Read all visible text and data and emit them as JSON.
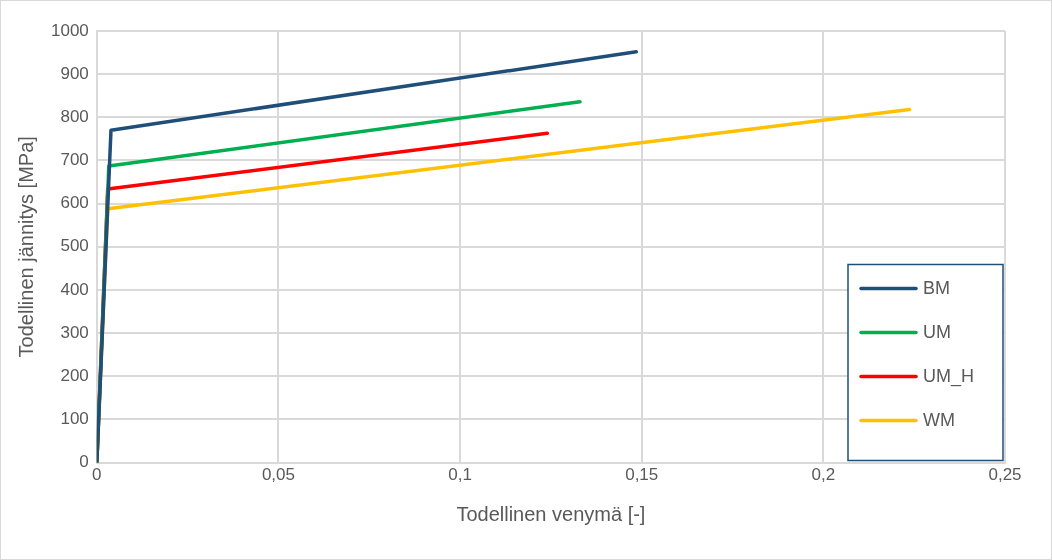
{
  "chart_data": {
    "type": "line",
    "xlabel": "Todellinen venymä [-]",
    "ylabel": "Todellinen jännitys [MPa]",
    "series": [
      {
        "name": "BM",
        "color": "#1f4e79",
        "x": [
          0,
          0.0039,
          0.1485
        ],
        "values": [
          0,
          770,
          952
        ]
      },
      {
        "name": "UM",
        "color": "#00b050",
        "x": [
          0,
          0.0033,
          0.133
        ],
        "values": [
          0,
          687,
          836
        ]
      },
      {
        "name": "UM_H",
        "color": "#ff0000",
        "x": [
          0,
          0.003,
          0.124
        ],
        "values": [
          0,
          634,
          763
        ]
      },
      {
        "name": "WM",
        "color": "#ffc000",
        "x": [
          0,
          0.003,
          0.2237
        ],
        "values": [
          0,
          588,
          818
        ]
      }
    ],
    "xlim": [
      0,
      0.25
    ],
    "xticks": [
      0,
      {
        "value": 0.05,
        "label": "0,05"
      },
      {
        "value": 0.1,
        "label": "0,1"
      },
      {
        "value": 0.15,
        "label": "0,15"
      },
      {
        "value": 0.2,
        "label": "0,2"
      },
      {
        "value": 0.25,
        "label": "0,25"
      }
    ],
    "ylim": [
      0,
      1000
    ],
    "yticks": [
      0,
      100,
      200,
      300,
      400,
      500,
      600,
      700,
      800,
      900,
      1000
    ],
    "grid": true,
    "legend": "bottom right",
    "marker": "none",
    "line_style": "solid"
  }
}
